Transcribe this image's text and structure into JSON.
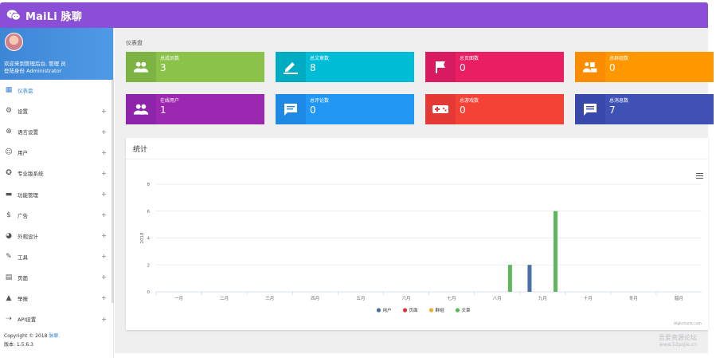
{
  "app": {
    "brand": "MaiLi 脉聊",
    "logo_icon": "wechat-logo-icon"
  },
  "profile": {
    "welcome": "欢迎来到管理后台, 管理 员",
    "role": "登陆身份 Administrator"
  },
  "sidebar": {
    "items": [
      {
        "label": "仪表盘",
        "icon": "dashboard-icon",
        "glyph": "▦",
        "active": true,
        "expandable": false
      },
      {
        "label": "设置",
        "icon": "gear-icon",
        "glyph": "⚙",
        "active": false,
        "expandable": true
      },
      {
        "label": "语言设置",
        "icon": "globe-icon",
        "glyph": "⊕",
        "active": false,
        "expandable": true
      },
      {
        "label": "用户",
        "icon": "user-icon",
        "glyph": "☺",
        "active": false,
        "expandable": true
      },
      {
        "label": "专业版系统",
        "icon": "star-icon",
        "glyph": "✪",
        "active": false,
        "expandable": true
      },
      {
        "label": "功能管理",
        "icon": "storage-icon",
        "glyph": "▬",
        "active": false,
        "expandable": true
      },
      {
        "label": "广告",
        "icon": "dollar-icon",
        "glyph": "$",
        "active": false,
        "expandable": true
      },
      {
        "label": "外观设计",
        "icon": "palette-icon",
        "glyph": "◕",
        "active": false,
        "expandable": true
      },
      {
        "label": "工具",
        "icon": "wrench-icon",
        "glyph": "✎",
        "active": false,
        "expandable": true
      },
      {
        "label": "页面",
        "icon": "page-icon",
        "glyph": "▤",
        "active": false,
        "expandable": true
      },
      {
        "label": "举报",
        "icon": "warning-icon",
        "glyph": "▲",
        "active": false,
        "expandable": true
      },
      {
        "label": "API设置",
        "icon": "api-icon",
        "glyph": "⇢",
        "active": false,
        "expandable": true
      }
    ],
    "expand_symbol": "+"
  },
  "footer": {
    "copyright_prefix": "Copyright © 2018 ",
    "copyright_link": "脉聊.",
    "version": "版本: 1.5.6.3"
  },
  "breadcrumb": "仪表盘",
  "cards": [
    {
      "label": "总成员数",
      "value": "3",
      "icon": "users-icon",
      "color": "#8bc34a",
      "icon_bg": "#7cb342"
    },
    {
      "label": "总文章数",
      "value": "8",
      "icon": "pencil-icon",
      "color": "#00bcd4",
      "icon_bg": "#00acc1"
    },
    {
      "label": "总页面数",
      "value": "0",
      "icon": "flag-icon",
      "color": "#e91e63",
      "icon_bg": "#d81b60"
    },
    {
      "label": "总群组数",
      "value": "0",
      "icon": "group-icon",
      "color": "#ff9800",
      "icon_bg": "#fb8c00"
    },
    {
      "label": "在线用户",
      "value": "1",
      "icon": "online-users-icon",
      "color": "#9c27b0",
      "icon_bg": "#8e24aa"
    },
    {
      "label": "总评论数",
      "value": "0",
      "icon": "comment-icon",
      "color": "#2196f3",
      "icon_bg": "#1e88e5"
    },
    {
      "label": "总游戏数",
      "value": "0",
      "icon": "gamepad-icon",
      "color": "#f44336",
      "icon_bg": "#e53935"
    },
    {
      "label": "总消息数",
      "value": "7",
      "icon": "message-icon",
      "color": "#3f51b5",
      "icon_bg": "#3949ab"
    }
  ],
  "panel": {
    "title": "统计",
    "menu_icon": "hamburger-menu-icon"
  },
  "chart_data": {
    "type": "bar",
    "title": "",
    "xlabel": "",
    "ylabel": "2018",
    "ylim": [
      0,
      8
    ],
    "yticks": [
      0,
      2,
      4,
      6,
      8
    ],
    "categories": [
      "一月",
      "二月",
      "三月",
      "四月",
      "五月",
      "六月",
      "七月",
      "八月",
      "九月",
      "十月",
      "冬月",
      "腊月"
    ],
    "series": [
      {
        "name": "用户",
        "color": "#4a6fa5",
        "values": [
          0,
          0,
          0,
          0,
          0,
          0,
          0,
          0,
          2,
          0,
          0,
          0
        ]
      },
      {
        "name": "页面",
        "color": "#d9363e",
        "values": [
          0,
          0,
          0,
          0,
          0,
          0,
          0,
          0,
          0,
          0,
          0,
          0
        ]
      },
      {
        "name": "群组",
        "color": "#f0ad2e",
        "values": [
          0,
          0,
          0,
          0,
          0,
          0,
          0,
          0,
          0,
          0,
          0,
          0
        ]
      },
      {
        "name": "文章",
        "color": "#5cb85c",
        "values": [
          0,
          0,
          0,
          0,
          0,
          0,
          0,
          2,
          6,
          0,
          0,
          0
        ]
      }
    ],
    "legend": "bottom",
    "grid": true,
    "credit": "Highcharts.com"
  },
  "watermark": {
    "line1": "吾爱资源论坛",
    "line2": "www.52pojie.cn"
  }
}
